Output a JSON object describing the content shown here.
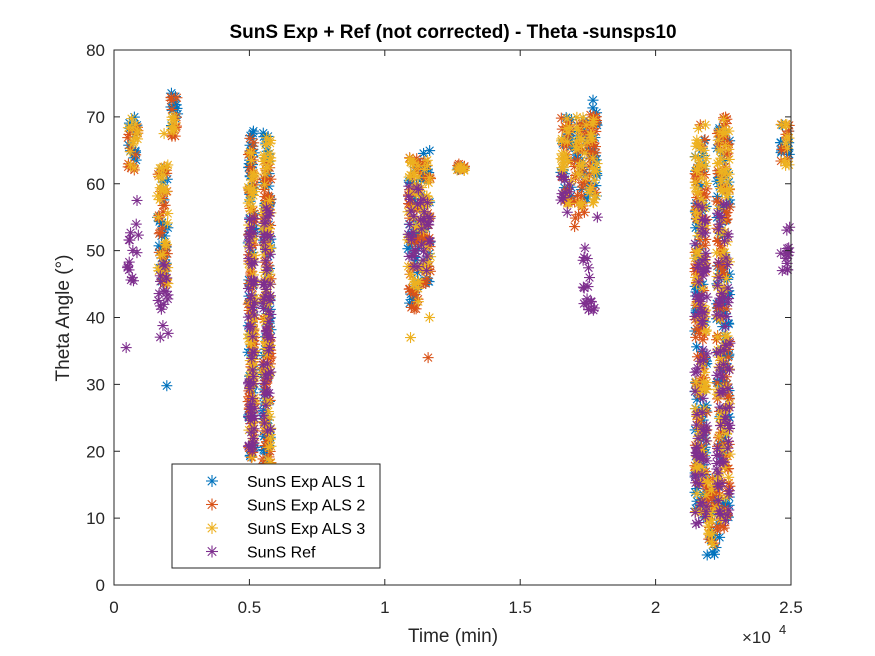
{
  "chart_data": {
    "type": "scatter",
    "title": "SunS Exp + Ref (not corrected) - Theta -sunsps10",
    "xlabel": "Time (min)",
    "ylabel": "Theta Angle (°)",
    "x_exponent_label": "×10",
    "x_exponent_power": "4",
    "xlim": [
      0,
      25000
    ],
    "ylim": [
      0,
      80
    ],
    "x_ticks": [
      0,
      5000,
      10000,
      15000,
      20000,
      25000
    ],
    "x_tick_labels": [
      "0",
      "0.5",
      "1",
      "1.5",
      "2",
      "2.5"
    ],
    "y_ticks": [
      0,
      10,
      20,
      30,
      40,
      50,
      60,
      70,
      80
    ],
    "y_tick_labels": [
      "0",
      "10",
      "20",
      "30",
      "40",
      "50",
      "60",
      "70",
      "80"
    ],
    "grid": true,
    "legend_position": "bottom-left",
    "marker": "asterisk",
    "series": [
      {
        "name": "SunS Exp ALS 1",
        "color": "#0072BD",
        "segments": [
          {
            "x": [
              500,
              900
            ],
            "y": [
              62,
              70
            ]
          },
          {
            "x": [
              1600,
              2000
            ],
            "y": [
              45,
              63
            ]
          },
          {
            "x": [
              2100,
              2350
            ],
            "y": [
              67,
              74
            ]
          },
          {
            "x": [
              4950,
              5200
            ],
            "y": [
              19,
              68
            ]
          },
          {
            "x": [
              5500,
              5800
            ],
            "y": [
              18,
              68
            ]
          },
          {
            "x": [
              10850,
              11250
            ],
            "y": [
              42,
              64
            ]
          },
          {
            "x": [
              11300,
              11700
            ],
            "y": [
              45,
              65
            ]
          },
          {
            "x": [
              12650,
              12950
            ],
            "y": [
              62,
              63
            ]
          },
          {
            "x": [
              16500,
              16900
            ],
            "y": [
              58,
              70
            ]
          },
          {
            "x": [
              17000,
              17500
            ],
            "y": [
              57,
              70
            ]
          },
          {
            "x": [
              17500,
              17850
            ],
            "y": [
              58,
              73
            ]
          },
          {
            "x": [
              21450,
              21900
            ],
            "y": [
              10,
              69
            ]
          },
          {
            "x": [
              21900,
              22250
            ],
            "y": [
              4,
              15
            ]
          },
          {
            "x": [
              22250,
              22750
            ],
            "y": [
              7,
              70
            ]
          },
          {
            "x": [
              24600,
              24950
            ],
            "y": [
              63,
              69
            ]
          }
        ],
        "points": [
          {
            "x": 1950,
            "y": 29.8
          }
        ]
      },
      {
        "name": "SunS Exp ALS 2",
        "color": "#D95319",
        "segments": [
          {
            "x": [
              500,
              900
            ],
            "y": [
              62,
              70
            ]
          },
          {
            "x": [
              1600,
              2000
            ],
            "y": [
              45,
              63
            ]
          },
          {
            "x": [
              2100,
              2350
            ],
            "y": [
              67,
              74.5
            ]
          },
          {
            "x": [
              4950,
              5200
            ],
            "y": [
              19,
              67
            ]
          },
          {
            "x": [
              5500,
              5800
            ],
            "y": [
              18,
              67
            ]
          },
          {
            "x": [
              10850,
              11250
            ],
            "y": [
              41,
              64
            ]
          },
          {
            "x": [
              11300,
              11700
            ],
            "y": [
              45,
              64
            ]
          },
          {
            "x": [
              12650,
              12950
            ],
            "y": [
              62,
              63
            ]
          },
          {
            "x": [
              16500,
              16900
            ],
            "y": [
              57,
              70
            ]
          },
          {
            "x": [
              17000,
              17500
            ],
            "y": [
              52,
              70
            ]
          },
          {
            "x": [
              17500,
              17850
            ],
            "y": [
              58,
              72
            ]
          },
          {
            "x": [
              21450,
              21900
            ],
            "y": [
              10,
              69
            ]
          },
          {
            "x": [
              21900,
              22250
            ],
            "y": [
              6,
              16
            ]
          },
          {
            "x": [
              22250,
              22750
            ],
            "y": [
              8,
              70
            ]
          },
          {
            "x": [
              24600,
              24950
            ],
            "y": [
              63,
              69
            ]
          }
        ],
        "points": [
          {
            "x": 11600,
            "y": 34
          }
        ]
      },
      {
        "name": "SunS Exp ALS 3",
        "color": "#EDB120",
        "segments": [
          {
            "x": [
              500,
              900
            ],
            "y": [
              62,
              70
            ]
          },
          {
            "x": [
              1600,
              2000
            ],
            "y": [
              45,
              63
            ]
          },
          {
            "x": [
              2100,
              2350
            ],
            "y": [
              67,
              70
            ]
          },
          {
            "x": [
              4950,
              5200
            ],
            "y": [
              19,
              66
            ]
          },
          {
            "x": [
              5500,
              5800
            ],
            "y": [
              18,
              68
            ]
          },
          {
            "x": [
              10850,
              11250
            ],
            "y": [
              42,
              64
            ]
          },
          {
            "x": [
              11300,
              11700
            ],
            "y": [
              46,
              64
            ]
          },
          {
            "x": [
              12650,
              12950
            ],
            "y": [
              62,
              63
            ]
          },
          {
            "x": [
              16500,
              16900
            ],
            "y": [
              57,
              70
            ]
          },
          {
            "x": [
              17000,
              17500
            ],
            "y": [
              56,
              70
            ]
          },
          {
            "x": [
              17500,
              17850
            ],
            "y": [
              57,
              70
            ]
          },
          {
            "x": [
              21450,
              21900
            ],
            "y": [
              10,
              69
            ]
          },
          {
            "x": [
              21900,
              22250
            ],
            "y": [
              6,
              16
            ]
          },
          {
            "x": [
              22250,
              22750
            ],
            "y": [
              8,
              70
            ]
          },
          {
            "x": [
              24600,
              24950
            ],
            "y": [
              62,
              69
            ]
          }
        ],
        "points": [
          {
            "x": 10950,
            "y": 37
          },
          {
            "x": 11650,
            "y": 40
          },
          {
            "x": 1850,
            "y": 67.5
          }
        ]
      },
      {
        "name": "SunS Ref",
        "color": "#7E2F8E",
        "segments": [
          {
            "x": [
              500,
              900
            ],
            "y": [
              45,
              54
            ]
          },
          {
            "x": [
              1600,
              2000
            ],
            "y": [
              37,
              48
            ]
          },
          {
            "x": [
              4950,
              5200
            ],
            "y": [
              19,
              55
            ]
          },
          {
            "x": [
              5500,
              5800
            ],
            "y": [
              22,
              57
            ]
          },
          {
            "x": [
              10850,
              11250
            ],
            "y": [
              47,
              60
            ]
          },
          {
            "x": [
              11300,
              11700
            ],
            "y": [
              47,
              59
            ]
          },
          {
            "x": [
              16500,
              16900
            ],
            "y": [
              55,
              62
            ]
          },
          {
            "x": [
              17300,
              17750
            ],
            "y": [
              40,
              51
            ]
          },
          {
            "x": [
              21450,
              21900
            ],
            "y": [
              9,
              57
            ]
          },
          {
            "x": [
              22250,
              22750
            ],
            "y": [
              9,
              57
            ]
          },
          {
            "x": [
              24600,
              24950
            ],
            "y": [
              46,
              54
            ]
          }
        ],
        "points": [
          {
            "x": 450,
            "y": 35.5
          },
          {
            "x": 850,
            "y": 57.5
          },
          {
            "x": 17850,
            "y": 55
          }
        ]
      }
    ]
  }
}
